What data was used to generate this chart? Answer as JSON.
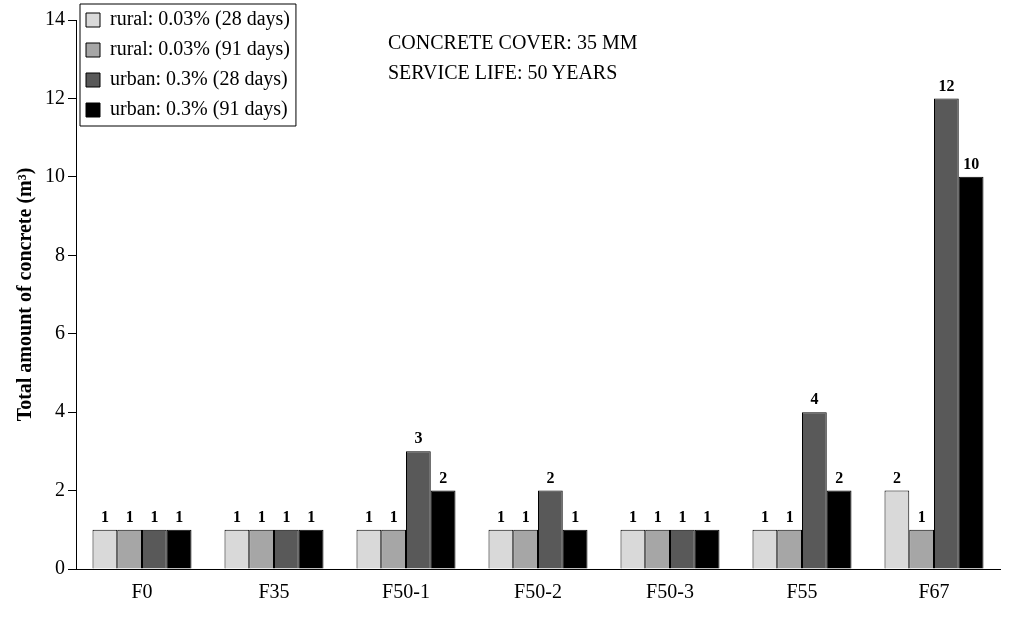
{
  "chart_data": {
    "type": "bar",
    "ylabel": "Total amount of concrete (m³)",
    "categories": [
      "F0",
      "F35",
      "F50-1",
      "F50-2",
      "F50-3",
      "F55",
      "F67"
    ],
    "series": [
      {
        "name": "rural: 0.03% (28 days)",
        "color": "#d9d9d9",
        "values": [
          1,
          1,
          1,
          1,
          1,
          1,
          2
        ]
      },
      {
        "name": "rural: 0.03% (91 days)",
        "color": "#a6a6a6",
        "values": [
          1,
          1,
          1,
          1,
          1,
          1,
          1
        ]
      },
      {
        "name": "urban: 0.3% (28 days)",
        "color": "#595959",
        "values": [
          1,
          1,
          3,
          2,
          1,
          4,
          12
        ]
      },
      {
        "name": "urban: 0.3% (91 days)",
        "color": "#000000",
        "values": [
          1,
          1,
          2,
          1,
          1,
          2,
          10
        ]
      }
    ],
    "ylim": [
      0,
      14
    ],
    "yticks": [
      0,
      2,
      4,
      6,
      8,
      10,
      12,
      14
    ],
    "grid": false,
    "legend": "top left",
    "data_labels": true,
    "annotations": [
      "CONCRETE COVER: 35 MM",
      "SERVICE LIFE: 50 YEARS"
    ]
  }
}
